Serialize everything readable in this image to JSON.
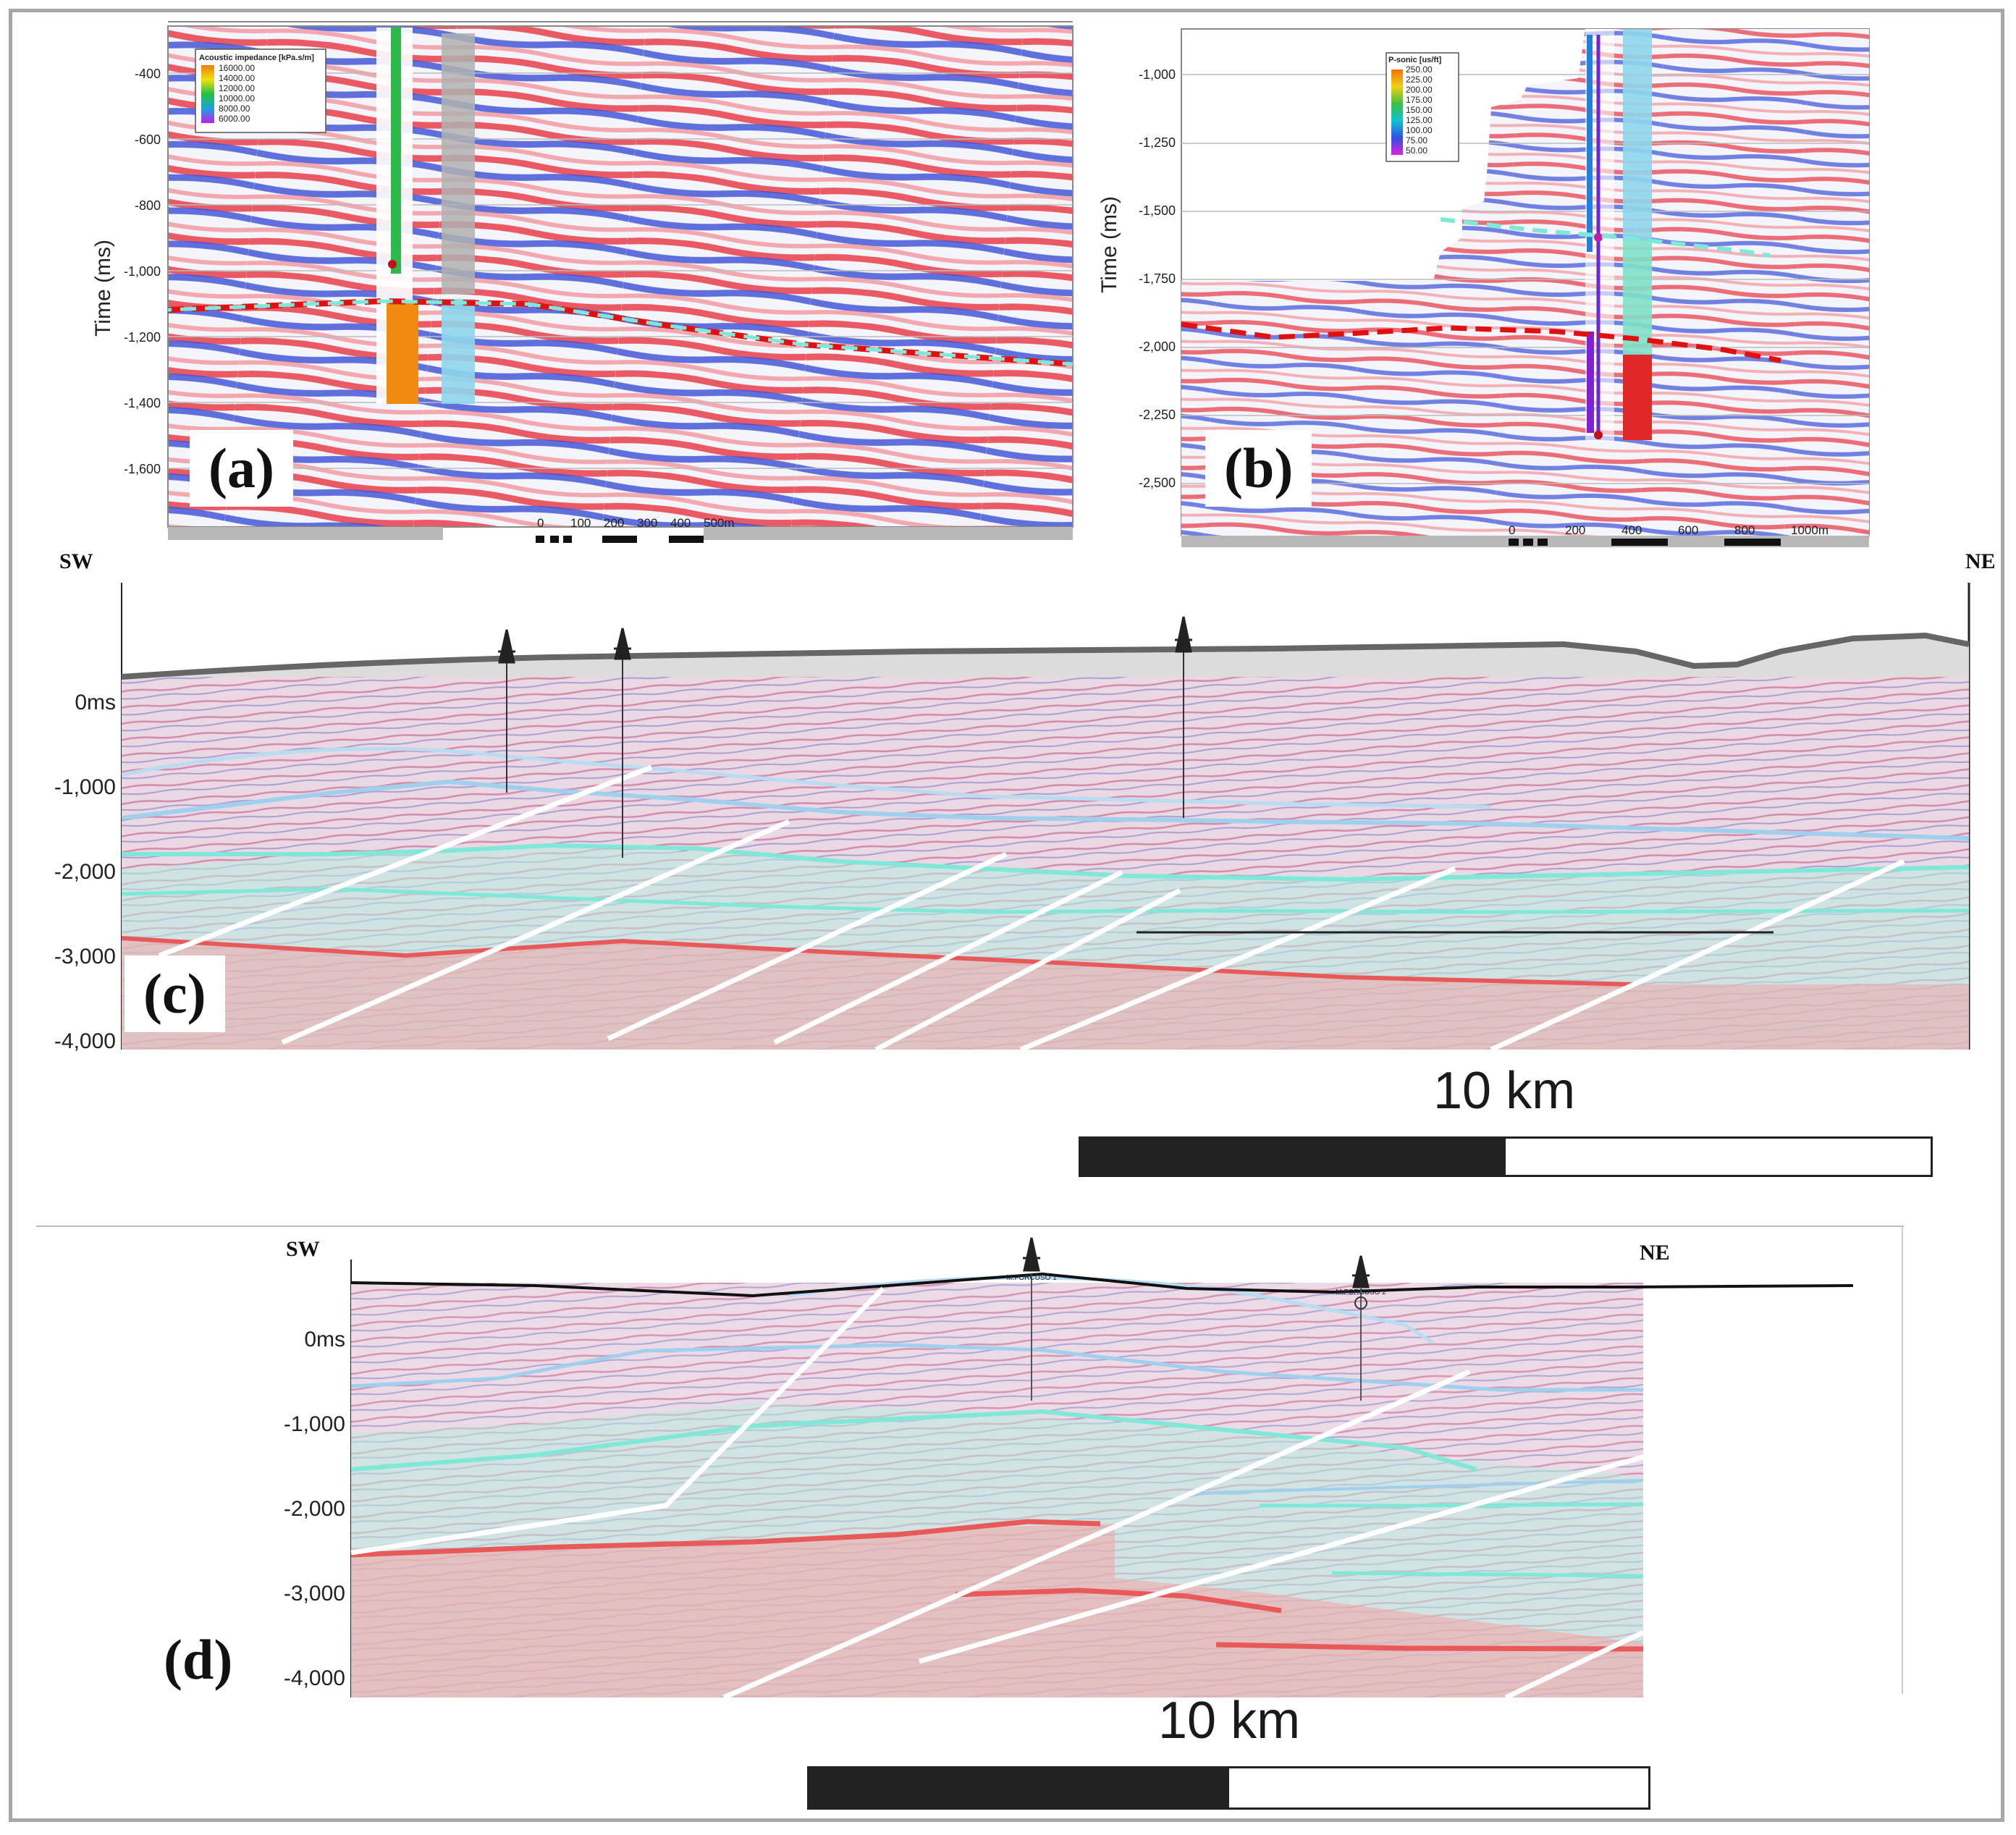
{
  "panels": {
    "a": {
      "label": "(a)",
      "ylabel": "Time (ms)",
      "yticks": [
        "-400",
        "-600",
        "-800",
        "-1,000",
        "-1,200",
        "-1,400",
        "-1,600"
      ],
      "legend": {
        "title": "Acoustic impedance [kPa.s/m]",
        "values": [
          "16000.00",
          "14000.00",
          "12000.00",
          "10000.00",
          "8000.00",
          "6000.00"
        ]
      },
      "scalebar": [
        "0",
        "100",
        "200",
        "300",
        "400",
        "500m"
      ]
    },
    "b": {
      "label": "(b)",
      "ylabel": "Time (ms)",
      "yticks": [
        "-1,000",
        "-1,250",
        "-1,500",
        "-1,750",
        "-2,000",
        "-2,250",
        "-2,500"
      ],
      "legend": {
        "title": "P-sonic [us/ft]",
        "values": [
          "250.00",
          "225.00",
          "200.00",
          "175.00",
          "150.00",
          "125.00",
          "100.00",
          "75.00",
          "50.00"
        ]
      },
      "scalebar": [
        "0",
        "200",
        "400",
        "600",
        "800",
        "1000m"
      ]
    },
    "c": {
      "label": "(c)",
      "sw": "SW",
      "ne": "NE",
      "yticks": [
        "0ms",
        "-1,000",
        "-2,000",
        "-3,000",
        "-4,000"
      ],
      "scale_label": "10 km"
    },
    "d": {
      "label": "(d)",
      "sw": "SW",
      "ne": "NE",
      "yticks": [
        "0ms",
        "-1,000",
        "-2,000",
        "-3,000",
        "-4,000"
      ],
      "scale_label": "10 km",
      "well_labels": [
        "M.FORCUSO 1",
        "M.FORCUSO 2"
      ]
    }
  },
  "colors": {
    "seismic_red": "#e8404a",
    "seismic_blue": "#3a4fd6",
    "horizon_cyan": "#7fe8d8",
    "horizon_blue": "#9fd0ee",
    "horizon_red": "#e85a5a",
    "fault": "#ffffff",
    "interp_red": "#e01010"
  }
}
